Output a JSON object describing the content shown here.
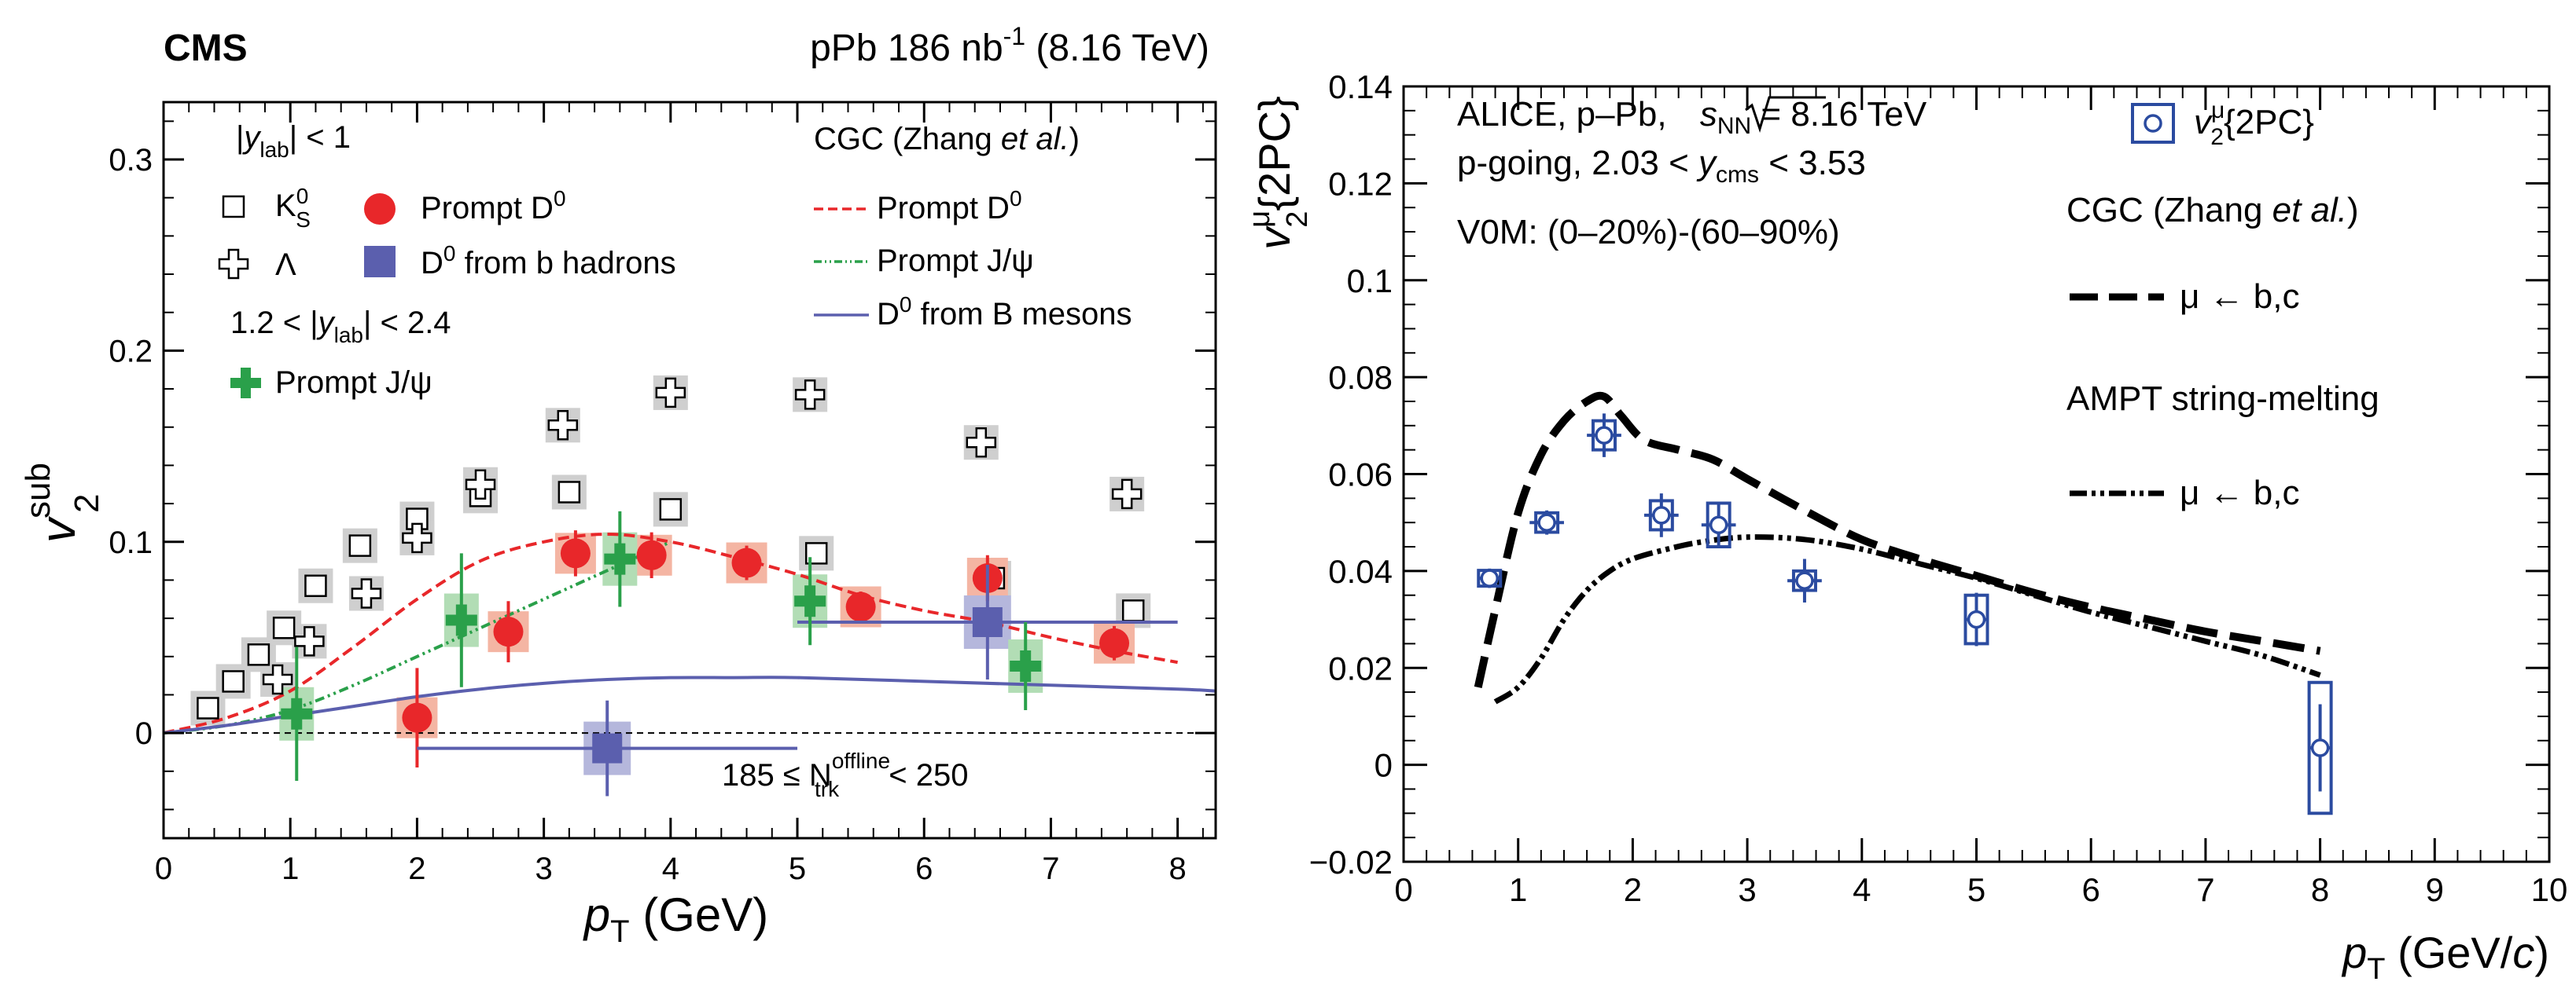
{
  "chart_data": [
    {
      "type": "scatter",
      "experiment": "CMS",
      "header": "pPb 186 nb",
      "header_sup": "-1",
      "header_tail": " (8.16 TeV)",
      "ylabel": "v",
      "ylabel_sup": "sub",
      "ylabel_sub": "2",
      "xlabel": "p",
      "xlabel_sub": "T",
      "xlabel_unit": " (GeV)",
      "xlim": [
        0,
        8.3
      ],
      "ylim": [
        -0.055,
        0.33
      ],
      "x_ticks": [
        "0",
        "1",
        "2",
        "3",
        "4",
        "5",
        "6",
        "7",
        "8"
      ],
      "y_ticks": [
        "0",
        "0.1",
        "0.2",
        "0.3"
      ],
      "legend_left": {
        "sel1": "|y_lab| < 1",
        "ks_label": "K",
        "ks_sup": "0",
        "ks_sub": "S",
        "lambda_label": "Λ",
        "d0_label": "Prompt D",
        "d0_sup": "0",
        "b_label": "D",
        "b_sup": "0",
        "b_tail": " from b hadrons",
        "sel2": "1.2 < |y_lab| < 2.4",
        "jpsi_label": "Prompt J/ψ"
      },
      "legend_right": {
        "title": "CGC (Zhang ",
        "title_it": "et al.",
        "title_end": ")",
        "d0": "Prompt D",
        "d0_sup": "0",
        "jpsi": "Prompt J/ψ",
        "bmes": "D",
        "bmes_sup": "0",
        "bmes_tail": " from B mesons"
      },
      "annotation": {
        "pre": "185 ≤ N",
        "sup": "offline",
        "sub": "trk",
        "post": " < 250"
      },
      "colors": {
        "d0": "#e8272a",
        "d0_sys": "#f4b5a3",
        "b": "#5b5fae",
        "b_sys": "#b5b7dc",
        "jpsi": "#2aa04a",
        "jpsi_sys": "#b2ddb5",
        "ks_sys": "#cfcfcf",
        "cgc_d0": "#e8272a",
        "cgc_jpsi": "#2aa04a",
        "cgc_b": "#5b5fae"
      },
      "series": [
        {
          "name": "K_S^0",
          "marker": "open-square",
          "x": [
            0.35,
            0.55,
            0.75,
            0.95,
            1.2,
            1.55,
            2.0,
            2.5,
            3.2,
            4.0,
            5.15,
            6.55,
            7.65
          ],
          "y": [
            0.013,
            0.027,
            0.041,
            0.055,
            0.077,
            0.098,
            0.112,
            0.124,
            0.126,
            0.117,
            0.094,
            0.081,
            0.064
          ]
        },
        {
          "name": "Λ",
          "marker": "open-cross",
          "x": [
            0.9,
            1.15,
            1.6,
            2.0,
            2.5,
            3.15,
            4.0,
            5.1,
            6.45,
            7.6
          ],
          "y": [
            0.028,
            0.048,
            0.073,
            0.102,
            0.13,
            0.161,
            0.178,
            0.177,
            0.152,
            0.125
          ]
        },
        {
          "name": "Prompt D^0",
          "marker": "filled-circle",
          "x": [
            2.0,
            2.72,
            3.25,
            3.85,
            4.6,
            5.5,
            6.5,
            7.5
          ],
          "y": [
            0.008,
            0.053,
            0.094,
            0.093,
            0.089,
            0.066,
            0.081,
            0.047
          ],
          "err": [
            0.026,
            0.016,
            0.012,
            0.012,
            0.009,
            0.008,
            0.012,
            0.009
          ]
        },
        {
          "name": "D^0 from b hadrons",
          "marker": "filled-square",
          "x": [
            3.5,
            6.5
          ],
          "y": [
            -0.008,
            0.058
          ],
          "xerr": [
            1.5,
            1.5
          ],
          "err": [
            0.025,
            0.03
          ]
        },
        {
          "name": "Prompt J/ψ",
          "marker": "filled-cross",
          "x": [
            1.05,
            2.35,
            3.6,
            5.1,
            6.8
          ],
          "y": [
            0.01,
            0.059,
            0.091,
            0.069,
            0.035
          ],
          "err": [
            0.035,
            0.035,
            0.025,
            0.023,
            0.023
          ]
        }
      ],
      "models": [
        {
          "name": "Prompt D^0",
          "style": "dashed",
          "x": [
            0,
            0.5,
            1.0,
            1.5,
            2.0,
            2.5,
            3.0,
            3.5,
            4.0,
            4.5,
            5.0,
            5.5,
            6.0,
            6.5,
            7.0,
            7.5,
            8.0
          ],
          "y": [
            0,
            0.008,
            0.022,
            0.045,
            0.07,
            0.09,
            0.1,
            0.104,
            0.1,
            0.092,
            0.083,
            0.072,
            0.064,
            0.058,
            0.05,
            0.043,
            0.037
          ]
        },
        {
          "name": "Prompt J/ψ",
          "style": "dash-dot-dot",
          "x": [
            0,
            0.5,
            1.0,
            1.5,
            2.0,
            2.5,
            3.0,
            3.5,
            4.0
          ],
          "y": [
            0,
            0.004,
            0.012,
            0.025,
            0.04,
            0.055,
            0.07,
            0.085,
            0.1
          ]
        },
        {
          "name": "D^0 from B mesons",
          "style": "solid",
          "x": [
            0,
            0.5,
            1.0,
            1.5,
            2.0,
            2.5,
            3.0,
            3.5,
            4.0,
            4.5,
            5.0,
            6.0,
            7.0,
            8.0,
            8.3
          ],
          "y": [
            0,
            0.004,
            0.009,
            0.014,
            0.019,
            0.023,
            0.026,
            0.028,
            0.029,
            0.029,
            0.029,
            0.027,
            0.025,
            0.023,
            0.022
          ]
        }
      ]
    },
    {
      "type": "scatter",
      "ylabel": "v",
      "ylabel_sup": "μ",
      "ylabel_sub": "2",
      "ylabel_tail": "{2PC}",
      "xlabel": "p",
      "xlabel_sub": "T",
      "xlabel_unit": " (GeV/",
      "xlabel_unit_it": "c",
      "xlabel_unit_end": ")",
      "xlim": [
        0,
        10
      ],
      "ylim": [
        -0.02,
        0.14
      ],
      "x_ticks": [
        "0",
        "1",
        "2",
        "3",
        "4",
        "5",
        "6",
        "7",
        "8",
        "9",
        "10"
      ],
      "y_ticks": [
        "−0.02",
        "0",
        "0.02",
        "0.04",
        "0.06",
        "0.08",
        "0.1",
        "0.12",
        "0.14"
      ],
      "info_lines": {
        "l1_pre": "ALICE, p–Pb, ",
        "l1_sqrt": "s",
        "l1_sub": "NN",
        "l1_post": " = 8.16 TeV",
        "l2_pre": "p-going, 2.03 < ",
        "l2_y": "y",
        "l2_sub": "cms",
        "l2_post": " < 3.53",
        "l3": "V0M: (0–20%)-(60–90%)"
      },
      "legend": {
        "data_v": "v",
        "data_sup": "μ",
        "data_sub": "2",
        "data_tail": "{2PC}",
        "cgc_title": "CGC (Zhang ",
        "cgc_title_it": "et al.",
        "cgc_title_end": ")",
        "cgc_curve": "μ ← b,c",
        "ampt_title": "AMPT string-melting",
        "ampt_curve": "μ ← b,c"
      },
      "colors": {
        "data": "#2b4ba0"
      },
      "series": [
        {
          "name": "v2mu{2PC}",
          "marker": "open-circle",
          "x": [
            0.75,
            1.25,
            1.75,
            2.25,
            2.75,
            3.5,
            5.0,
            8.0
          ],
          "y": [
            0.0385,
            0.05,
            0.068,
            0.0515,
            0.0495,
            0.038,
            0.03,
            0.0035
          ],
          "err": [
            0.002,
            0.0025,
            0.0045,
            0.0045,
            0.0045,
            0.0045,
            0.0055,
            0.009
          ],
          "sys": [
            0.0015,
            0.002,
            0.003,
            0.003,
            0.0045,
            0.002,
            0.005,
            0.0135
          ],
          "xerr": [
            0.1,
            0.15,
            0.15,
            0.15,
            0.15,
            0.15,
            0.1,
            0.1
          ]
        }
      ],
      "models": [
        {
          "name": "CGC μ ← b,c",
          "style": "long-dash",
          "x": [
            0.65,
            0.8,
            1.0,
            1.2,
            1.4,
            1.6,
            1.75,
            1.9,
            2.1,
            2.4,
            2.7,
            3.0,
            3.5,
            4.0,
            4.5,
            5.0,
            5.5,
            6.0,
            6.5,
            7.0,
            7.5,
            8.0
          ],
          "y": [
            0.016,
            0.032,
            0.052,
            0.064,
            0.071,
            0.075,
            0.076,
            0.072,
            0.067,
            0.065,
            0.063,
            0.059,
            0.0525,
            0.0465,
            0.0425,
            0.039,
            0.0355,
            0.0325,
            0.03,
            0.0275,
            0.0255,
            0.0235
          ]
        },
        {
          "name": "AMPT μ ← b,c",
          "style": "dash-dot-dot",
          "x": [
            0.8,
            1.0,
            1.2,
            1.4,
            1.6,
            1.8,
            2.0,
            2.3,
            2.6,
            3.0,
            3.5,
            4.0,
            4.5,
            5.0,
            5.5,
            6.0,
            6.5,
            7.0,
            7.5,
            8.0
          ],
          "y": [
            0.013,
            0.016,
            0.022,
            0.03,
            0.036,
            0.04,
            0.0425,
            0.0445,
            0.046,
            0.047,
            0.0465,
            0.0445,
            0.0415,
            0.0385,
            0.035,
            0.0315,
            0.0285,
            0.0255,
            0.0225,
            0.0185
          ]
        }
      ]
    }
  ]
}
